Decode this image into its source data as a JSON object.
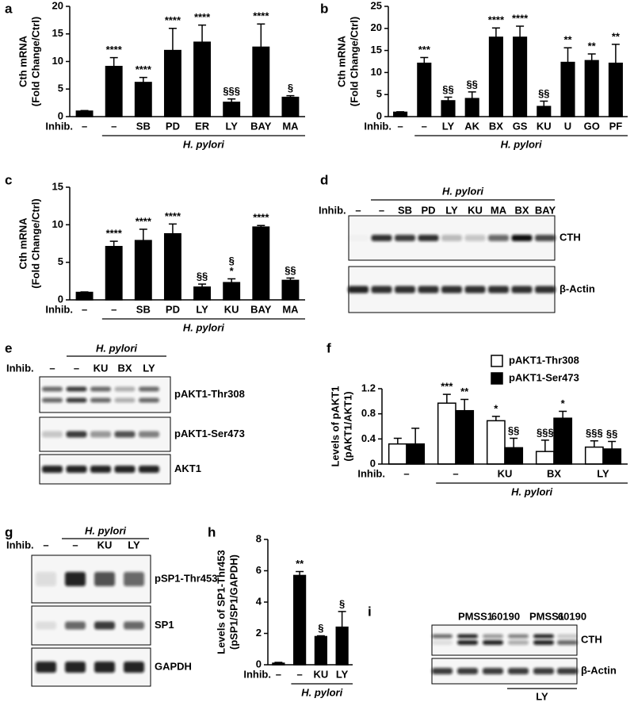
{
  "chart_data": [
    {
      "panel": "a",
      "type": "bar",
      "ylabel": [
        "Cth mRNA",
        "(Fold Change/Ctrl)"
      ],
      "row_label": "Inhib.",
      "group_label": "H. pylori",
      "categories": [
        "–",
        "–",
        "SB",
        "PD",
        "ER",
        "LY",
        "BAY",
        "MA"
      ],
      "series": [
        {
          "color": "#000000",
          "values": [
            1,
            9.1,
            6.2,
            12,
            13.5,
            2.6,
            12.6,
            3.5
          ],
          "errors": [
            0.1,
            1.6,
            0.9,
            4,
            3.1,
            0.6,
            4.2,
            0.3
          ],
          "annotations": [
            null,
            "****",
            "****",
            "****",
            "****",
            "§§§",
            "****",
            "§"
          ]
        }
      ],
      "ylim": [
        0,
        20
      ],
      "yticks": [
        0,
        5,
        10,
        15,
        20
      ]
    },
    {
      "panel": "b",
      "type": "bar",
      "ylabel": [
        "Cth mRNA",
        "(Fold Change/Ctrl)"
      ],
      "row_label": "Inhib.",
      "group_label": "H. pylori",
      "categories": [
        "–",
        "–",
        "LY",
        "AK",
        "BX",
        "GS",
        "KU",
        "U",
        "GO",
        "PF"
      ],
      "series": [
        {
          "color": "#000000",
          "values": [
            1,
            12.1,
            3.6,
            4.1,
            18,
            18,
            2.3,
            12.3,
            12.7,
            12.1
          ],
          "errors": [
            0.1,
            1.3,
            0.8,
            1.5,
            2.1,
            2.5,
            1.2,
            3.3,
            1.5,
            4.3
          ],
          "annotations": [
            null,
            "***",
            "§§",
            "§§",
            "****",
            "****",
            "§§",
            "**",
            "**",
            "**"
          ]
        }
      ],
      "ylim": [
        0,
        25
      ],
      "yticks": [
        0,
        5,
        10,
        15,
        20,
        25
      ]
    },
    {
      "panel": "c",
      "type": "bar",
      "ylabel": [
        "Cth mRNA",
        "(Fold Change/Ctrl)"
      ],
      "row_label": "Inhib.",
      "group_label": "H. pylori",
      "categories": [
        "–",
        "–",
        "SB",
        "PD",
        "LY",
        "KU",
        "BAY",
        "MA"
      ],
      "series": [
        {
          "color": "#000000",
          "values": [
            1,
            7.1,
            7.9,
            8.8,
            1.7,
            2.3,
            9.7,
            2.6
          ],
          "errors": [
            0.05,
            0.7,
            1.5,
            1.3,
            0.4,
            0.5,
            0.2,
            0.3
          ],
          "annotations": [
            null,
            "****",
            "****",
            "****",
            "§§",
            [
              "§",
              "*"
            ],
            "****",
            "§§"
          ]
        }
      ],
      "ylim": [
        0,
        15
      ],
      "yticks": [
        0,
        5,
        10,
        15
      ]
    },
    {
      "panel": "f",
      "type": "bar",
      "ylabel": [
        "Levels of pAKT1",
        "(pAKT1/AKT1)"
      ],
      "row_label": "Inhib.",
      "group_label": "H. pylori",
      "categories": [
        "–",
        "–",
        "KU",
        "BX",
        "LY"
      ],
      "legend": "upper right",
      "series": [
        {
          "name": "pAKT1-Thr308",
          "color": "#ffffff",
          "values": [
            0.32,
            0.97,
            0.69,
            0.2,
            0.27
          ],
          "errors": [
            0.09,
            0.14,
            0.07,
            0.18,
            0.1
          ],
          "annotations": [
            null,
            "***",
            "*",
            "§§§",
            "§§§"
          ]
        },
        {
          "name": "pAKT1-Ser473",
          "color": "#000000",
          "values": [
            0.32,
            0.85,
            0.26,
            0.73,
            0.24
          ],
          "errors": [
            0.25,
            0.18,
            0.15,
            0.11,
            0.12
          ],
          "annotations": [
            null,
            "**",
            "§§",
            "*",
            "§§"
          ]
        }
      ],
      "ylim": [
        0,
        1.2
      ],
      "yticks": [
        0,
        0.4,
        0.8,
        1.2
      ]
    },
    {
      "panel": "h",
      "type": "bar",
      "ylabel": [
        "Levels of SP1-Thr453",
        "(pSP1/SP1/GAPDH)"
      ],
      "row_label": "Inhib.",
      "group_label": "H. pylori",
      "categories": [
        "–",
        "–",
        "KU",
        "LY"
      ],
      "series": [
        {
          "color": "#000000",
          "values": [
            0.1,
            5.7,
            1.8,
            2.4
          ],
          "errors": [
            0.05,
            0.25,
            0.05,
            1.0
          ],
          "annotations": [
            null,
            "**",
            "§",
            "§"
          ]
        }
      ],
      "ylim": [
        0,
        8
      ],
      "yticks": [
        0,
        2,
        4,
        6,
        8
      ]
    }
  ],
  "blots": [
    {
      "panel": "d",
      "group_label": "H. pylori",
      "row_label": "Inhib.",
      "lanes": [
        "–",
        "–",
        "SB",
        "PD",
        "LY",
        "KU",
        "MA",
        "BX",
        "BAY"
      ],
      "rows": [
        "CTH",
        "β-Actin"
      ]
    },
    {
      "panel": "e",
      "group_label": "H. pylori",
      "row_label": "Inhib.",
      "lanes": [
        "–",
        "–",
        "KU",
        "BX",
        "LY"
      ],
      "rows": [
        "pAKT1-Thr308",
        "pAKT1-Ser473",
        "AKT1"
      ]
    },
    {
      "panel": "g",
      "group_label": "H. pylori",
      "row_label": "Inhib.",
      "lanes": [
        "–",
        "–",
        "KU",
        "LY"
      ],
      "rows": [
        "pSP1-Thr453",
        "SP1",
        "GAPDH"
      ]
    },
    {
      "panel": "i",
      "group_label": "LY",
      "lanes": [
        "PMSS1",
        "60190",
        "PMSS1",
        "60190"
      ],
      "rows": [
        "CTH",
        "β-Actin"
      ]
    }
  ]
}
